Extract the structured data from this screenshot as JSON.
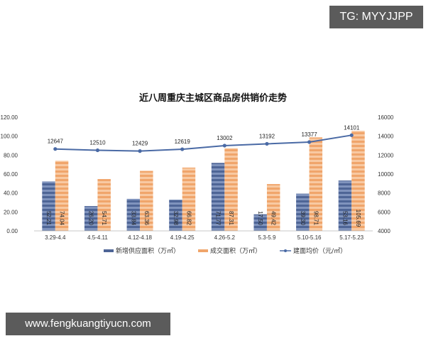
{
  "watermarks": {
    "top_right": "TG: MYYJJPP",
    "bottom_left": "www.fengkuangtiyucn.com"
  },
  "colors": {
    "supply_bar": "#4e6596",
    "supply_bar_light": "#7f93bd",
    "sales_bar": "#f0a56b",
    "sales_bar_light": "#f8c9a2",
    "price_line": "#4a6aa5",
    "axis": "#c8c8c8",
    "watermark_bg": "#5b5b5b"
  },
  "chart_data": {
    "type": "bar",
    "title": "近八周重庆主城区商品房供销价走势",
    "categories": [
      "3.29-4.4",
      "4.5-4.11",
      "4.12-4.18",
      "4.19-4.25",
      "4.26-5.2",
      "5.3-5.9",
      "5.10-5.16",
      "5.17-5.23"
    ],
    "series": [
      {
        "name": "新增供应面积（万㎡）",
        "type": "bar",
        "axis": "left",
        "values": [
          52.21,
          26.2,
          33.84,
          32.98,
          71.77,
          17.5,
          39.3,
          53.16
        ]
      },
      {
        "name": "成交面积（万㎡）",
        "type": "bar",
        "axis": "left",
        "values": [
          74.04,
          54.71,
          63.36,
          66.82,
          87.31,
          49.42,
          98.71,
          105.69
        ]
      },
      {
        "name": "建面均价（元/㎡）",
        "type": "line",
        "axis": "right",
        "values": [
          12647,
          12510,
          12429,
          12619,
          13002,
          13192,
          13377,
          14101
        ]
      }
    ],
    "left_axis": {
      "ylim": [
        0,
        120
      ],
      "ticks": [
        "0.00",
        "20.00",
        "40.00",
        "60.00",
        "80.00",
        "100.00",
        "120.00"
      ]
    },
    "right_axis": {
      "ylim": [
        4000,
        16000
      ],
      "ticks": [
        "4000",
        "6000",
        "8000",
        "10000",
        "12000",
        "14000",
        "16000"
      ]
    },
    "xlabel": "",
    "ylabel": "",
    "grid": false,
    "legend_position": "bottom",
    "bar_label_format": [
      "52.21",
      "26.20",
      "33.84",
      "32.98",
      "71.77",
      "17.50",
      "39.30",
      "53.16"
    ],
    "sales_label_format": [
      "74.04",
      "54.71",
      "63.36",
      "66.82",
      "87.31",
      "49.42",
      "98.71",
      "105.69"
    ]
  },
  "legend": {
    "supply": "新增供应面积（万㎡）",
    "sales": "成交面积（万㎡）",
    "price": "建面均价（元/㎡）"
  }
}
